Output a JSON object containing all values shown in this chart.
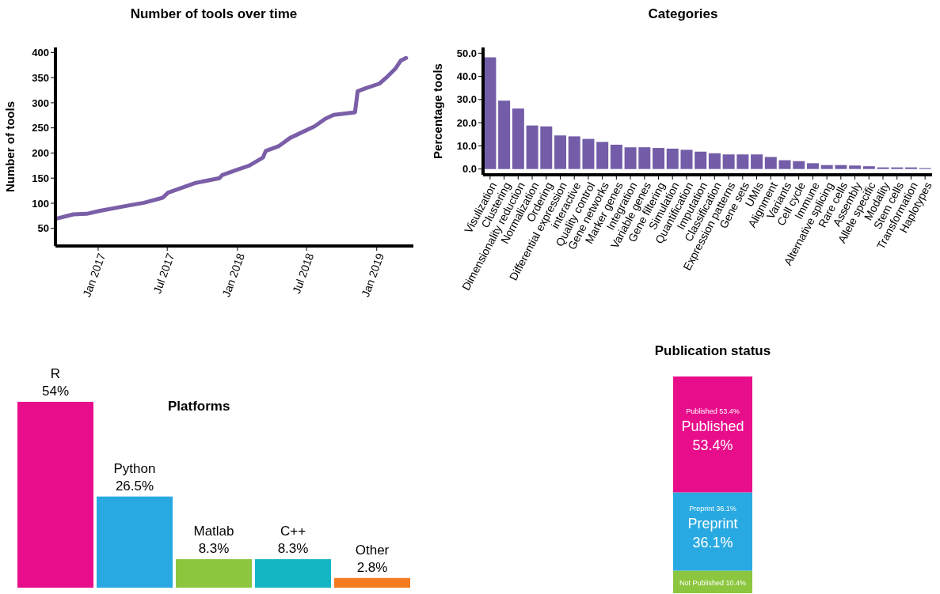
{
  "chart_data": [
    {
      "type": "line",
      "title": "Number of tools over time",
      "ylabel": "Number of tools",
      "x": [
        "2016-09-12",
        "2016-10-28",
        "2016-12-02",
        "2017-01-06",
        "2017-03-18",
        "2017-05-01",
        "2017-06-19",
        "2017-07-03",
        "2017-09-11",
        "2017-11-15",
        "2017-11-22",
        "2017-12-28",
        "2018-02-01",
        "2018-03-09",
        "2018-03-16",
        "2018-04-20",
        "2018-05-19",
        "2018-06-24",
        "2018-07-22",
        "2018-08-19",
        "2018-09-10",
        "2018-11-05",
        "2018-11-12",
        "2018-12-04",
        "2019-01-08",
        "2019-01-29",
        "2019-02-19",
        "2019-03-05",
        "2019-03-19"
      ],
      "series": [
        {
          "color": "#7b5ea8",
          "values": [
            69,
            78,
            79,
            85,
            95,
            101,
            111,
            121,
            140,
            150,
            156,
            166,
            175,
            191,
            204,
            214,
            230,
            243,
            253,
            268,
            276,
            281,
            323,
            329,
            338,
            352,
            368,
            384,
            389
          ]
        }
      ],
      "xlim": [
        "2016-09-11",
        "2019-04-07"
      ],
      "xticks": [
        {
          "value": "2017-01-01",
          "label": "Jan 2017"
        },
        {
          "value": "2017-07-01",
          "label": "Jul 2017"
        },
        {
          "value": "2018-01-01",
          "label": "Jan 2018"
        },
        {
          "value": "2018-07-01",
          "label": "Jul 2018"
        },
        {
          "value": "2019-01-01",
          "label": "Jan 2019"
        }
      ],
      "ylim": [
        15,
        410
      ],
      "yticks": [
        50,
        100,
        150,
        200,
        250,
        300,
        350,
        400
      ]
    },
    {
      "type": "bar",
      "title": "Categories",
      "ylabel": "Percentage tools",
      "categories": [
        "Visulization",
        "Clustering",
        "Dimensionality reduction",
        "Normalization",
        "Ordering",
        "Differential expression",
        "interactive",
        "Quality control",
        "Gene networks",
        "Marker genes",
        "Integration",
        "Variable genes",
        "Gene filtering",
        "Simulation",
        "Quantification",
        "Imputation",
        "Classification",
        "Expression patterns",
        "Gene sets",
        "UMIs",
        "Alignment",
        "Variants",
        "Cell cycle",
        "Immune",
        "Alternative splicing",
        "Rare cells",
        "Assembly",
        "Allele specific",
        "Modality",
        "Stem cells",
        "Transformation",
        "Haplotypes"
      ],
      "values": [
        48.2,
        29.5,
        26.1,
        18.8,
        18.4,
        14.5,
        14.1,
        13.0,
        11.7,
        10.5,
        9.4,
        9.4,
        9.1,
        8.8,
        8.3,
        7.5,
        6.8,
        6.3,
        6.3,
        6.3,
        5.2,
        3.8,
        3.4,
        2.5,
        1.7,
        1.7,
        1.5,
        1.2,
        0.7,
        0.7,
        0.7,
        0.4
      ],
      "color": "#735ca8",
      "ylim": [
        -2.5,
        52.5
      ],
      "yticks": [
        {
          "value": 0,
          "label": "0.0"
        },
        {
          "value": 10,
          "label": "10.0"
        },
        {
          "value": 20,
          "label": "20.0"
        },
        {
          "value": 30,
          "label": "30.0"
        },
        {
          "value": 40,
          "label": "40.0"
        },
        {
          "value": 50,
          "label": "50.0"
        }
      ]
    },
    {
      "type": "bar",
      "title": "Platforms",
      "categories": [
        "R",
        "Python",
        "Matlab",
        "C++",
        "Other"
      ],
      "values": [
        54,
        26.5,
        8.3,
        8.3,
        2.8
      ],
      "colors": [
        "#e80e8b",
        "#29a9e1",
        "#8cc63f",
        "#14b6c5",
        "#f47b20"
      ],
      "value_labels": [
        "54%",
        "26.5%",
        "8.3%",
        "8.3%",
        "2.8%"
      ]
    },
    {
      "type": "bar",
      "title": "Publication status",
      "stacked": true,
      "categories": [
        null
      ],
      "series": [
        {
          "color": "#8cc63f",
          "values": [
            10.4
          ],
          "value_labels": [
            null
          ]
        },
        {
          "name": "Preprint",
          "color": "#29a9e1",
          "values": [
            36.1
          ],
          "value_labels": [
            "36.1%"
          ]
        },
        {
          "name": "Published",
          "color": "#e80e8b",
          "values": [
            53.4
          ],
          "value_labels": [
            "53.4%"
          ]
        }
      ],
      "annotations": [
        "Not Published 10.4%",
        "Preprint 36.1%",
        "Published 53.4%"
      ]
    }
  ]
}
